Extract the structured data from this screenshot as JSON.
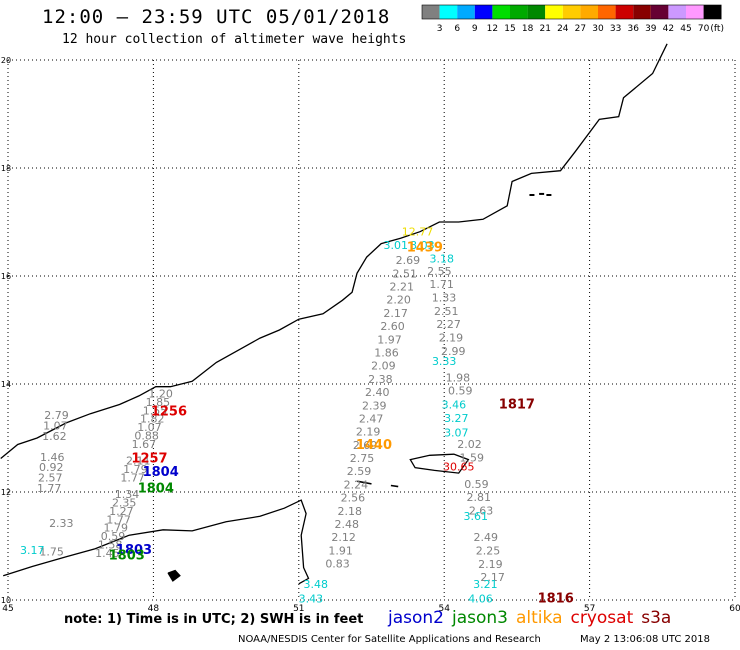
{
  "title": "12:00 – 23:59 UTC 05/01/2018",
  "subtitle": "12 hour collection of altimeter wave heights",
  "legend": {
    "unit": "(ft)",
    "colors": [
      "#808080",
      "#00ffff",
      "#00aaff",
      "#0000ff",
      "#00dd00",
      "#00aa00",
      "#008800",
      "#ffff00",
      "#ffcc00",
      "#ffaa00",
      "#ff6600",
      "#cc0000",
      "#880000",
      "#660033",
      "#cc99ff",
      "#ff99ff",
      "#000000"
    ],
    "labels": [
      "3",
      "6",
      "9",
      "12",
      "15",
      "18",
      "21",
      "24",
      "27",
      "30",
      "33",
      "36",
      "39",
      "42",
      "45",
      "70"
    ]
  },
  "axes": {
    "x_ticks": [
      "45",
      "48",
      "51",
      "54",
      "57",
      "60"
    ],
    "y_ticks": [
      "20",
      "18",
      "16",
      "14",
      "12",
      "10"
    ]
  },
  "note": "note: 1) Time is in UTC; 2) SWH is in feet",
  "satellites": [
    {
      "name": "jason2",
      "color": "#0000cc"
    },
    {
      "name": "jason3",
      "color": "#008800"
    },
    {
      "name": "altika",
      "color": "#ff9900"
    },
    {
      "name": "cryosat",
      "color": "#dd0000"
    },
    {
      "name": "s3a",
      "color": "#880000"
    }
  ],
  "footer_left": "NOAA/NESDIS Center for Satellite Applications and Research",
  "footer_right": "May  2 13:06:08 UTC 2018",
  "time_labels": [
    {
      "text": "1256",
      "color": "#dd0000",
      "lon": 48.32,
      "lat": 13.42
    },
    {
      "text": "1257",
      "color": "#dd0000",
      "lon": 47.92,
      "lat": 12.55
    },
    {
      "text": "1804",
      "color": "#0000cc",
      "lon": 48.15,
      "lat": 12.3
    },
    {
      "text": "1804",
      "color": "#008800",
      "lon": 48.05,
      "lat": 11.99
    },
    {
      "text": "1803",
      "color": "#0000cc",
      "lon": 47.6,
      "lat": 10.85
    },
    {
      "text": "1803",
      "color": "#008800",
      "lon": 47.45,
      "lat": 10.75
    },
    {
      "text": "1440",
      "color": "#ff9900",
      "lon": 52.55,
      "lat": 12.8
    },
    {
      "text": "1439",
      "color": "#ff9900",
      "lon": 53.6,
      "lat": 16.45
    },
    {
      "text": "1817",
      "color": "#880000",
      "lon": 55.5,
      "lat": 13.55
    },
    {
      "text": "1816",
      "color": "#880000",
      "lon": 56.3,
      "lat": 9.95
    }
  ],
  "tracks": [
    {
      "color": "#808080",
      "lon_start": 53.25,
      "lat_start": 16.22,
      "lon_end": 51.8,
      "lat_end": 10.6,
      "values": [
        "2.69",
        "2.51",
        "2.21",
        "2.20",
        "2.17",
        "2.60",
        "1.97",
        "1.86",
        "2.09",
        "2.38",
        "2.40",
        "2.39",
        "2.47",
        "2.19",
        "2.69",
        "2.75",
        "2.59",
        "2.24",
        "2.56",
        "2.18",
        "2.48",
        "2.12",
        "1.91",
        "0.83"
      ]
    },
    {
      "color": "#808080",
      "lon_start": 53.9,
      "lat_start": 16.02,
      "lon_end": 55.0,
      "lat_end": 10.35,
      "values": [
        "2.55",
        "1.71",
        "1.33",
        "2.51",
        "2.27",
        "2.19",
        "2.99",
        "",
        "1.98",
        "0.59",
        "",
        "",
        "",
        "2.02",
        "1.59",
        "",
        "0.59",
        "2.81",
        "2.63",
        "",
        "2.49",
        "2.25",
        "2.19",
        "2.17"
      ]
    },
    {
      "color": "#808080",
      "lon_start": 46.0,
      "lat_start": 13.35,
      "lon_end": 45.85,
      "lat_end": 12.0,
      "values": [
        "2.79",
        "1.07",
        "1.62",
        "",
        "1.46",
        "0.92",
        "2.57",
        "1.77"
      ]
    },
    {
      "color": "#808080",
      "lon_start": 46.1,
      "lat_start": 11.35,
      "lon_end": 45.9,
      "lat_end": 10.82,
      "values": [
        "2.33",
        "1.75"
      ]
    },
    {
      "color": "#808080",
      "lon_start": 48.15,
      "lat_start": 13.75,
      "lon_end": 47.05,
      "lat_end": 10.8,
      "values": [
        "1.20",
        "1.85",
        "1.55",
        "1.82",
        "1.07",
        "0.88",
        "1.67",
        "",
        "2.11",
        "1.79",
        "1.77",
        "",
        "1.34",
        "2.35",
        "1.27",
        "1.77",
        "1.79",
        "0.59",
        "1.58",
        "1.45"
      ]
    }
  ],
  "cyan_values": [
    {
      "text": "3.01",
      "lon": 53.0,
      "lat": 16.5
    },
    {
      "text": "3.03",
      "lon": 53.55,
      "lat": 16.5
    },
    {
      "text": "3.18",
      "lon": 53.95,
      "lat": 16.25
    },
    {
      "text": "3.33",
      "lon": 54.0,
      "lat": 14.35
    },
    {
      "text": "3.46",
      "lon": 54.2,
      "lat": 13.55
    },
    {
      "text": "3.27",
      "lon": 54.25,
      "lat": 13.3
    },
    {
      "text": "3.07",
      "lon": 54.25,
      "lat": 13.03
    },
    {
      "text": "3.61",
      "lon": 54.65,
      "lat": 11.48
    },
    {
      "text": "3.21",
      "lon": 54.85,
      "lat": 10.22
    },
    {
      "text": "4.06",
      "lon": 54.75,
      "lat": 9.95
    },
    {
      "text": "3.48",
      "lon": 51.35,
      "lat": 10.22
    },
    {
      "text": "3.43",
      "lon": 51.25,
      "lat": 9.95
    },
    {
      "text": "3.17",
      "lon": 45.5,
      "lat": 10.85
    }
  ],
  "yellow_values": [
    {
      "text": "12.77",
      "lon": 53.45,
      "lat": 16.75
    }
  ],
  "red_values": [
    {
      "text": "30.65",
      "lon": 54.3,
      "lat": 12.4
    }
  ]
}
